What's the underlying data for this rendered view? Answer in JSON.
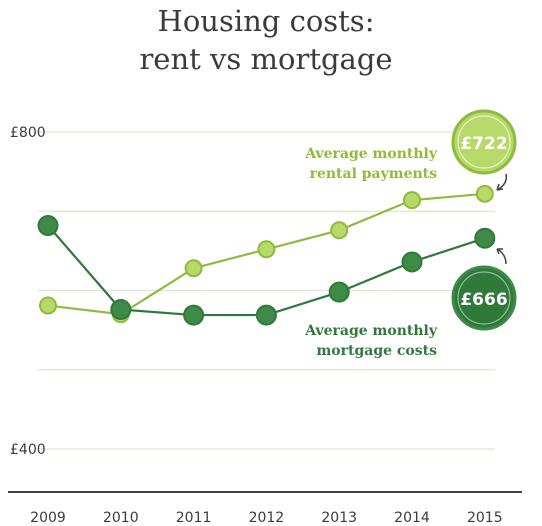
{
  "title_line1": "Housing costs:",
  "title_line2": "rent vs mortgage",
  "colors": {
    "rent": "#8dbb3c",
    "rent_fill": "#b7d96a",
    "mortgage": "#2f7a3a",
    "mortgage_fill": "#3f8a48",
    "grid": "#d9ead0",
    "axis": "#444444",
    "text": "#3b3b3b"
  },
  "chart_data": {
    "type": "line",
    "title": "Housing costs: rent vs mortgage",
    "categories": [
      "2009",
      "2010",
      "2011",
      "2012",
      "2013",
      "2014",
      "2015"
    ],
    "ylim": [
      360,
      800
    ],
    "y_ticks": [
      400,
      800
    ],
    "y_tick_labels": [
      "£400",
      "£800"
    ],
    "grid": true,
    "series": [
      {
        "key": "rent",
        "name": "Average monthly rental payments",
        "name_lines": [
          "Average monthly",
          "rental payments"
        ],
        "values": [
          581,
          570,
          628,
          652,
          676,
          714,
          722
        ],
        "end_label": "£722"
      },
      {
        "key": "mortgage",
        "name": "Average monthly mortgage costs",
        "name_lines": [
          "Average monthly",
          "mortgage costs"
        ],
        "values": [
          682,
          576,
          569,
          569,
          598,
          636,
          666
        ],
        "end_label": "£666"
      }
    ]
  }
}
